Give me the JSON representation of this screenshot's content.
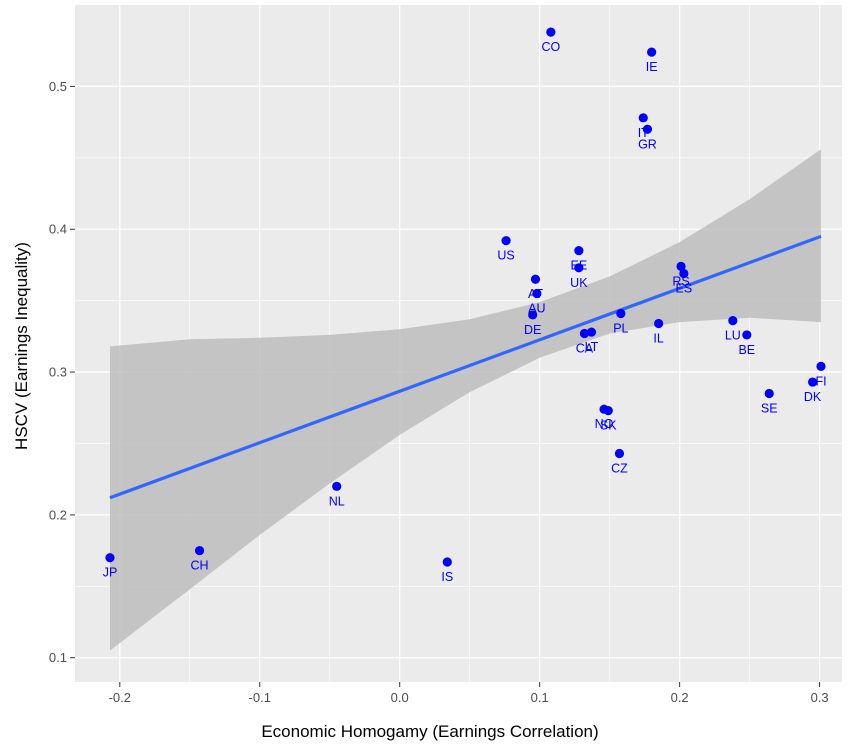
{
  "chart_data": {
    "type": "scatter",
    "title": "",
    "xlabel": "Economic Homogamy (Earnings Correlation)",
    "ylabel": "HSCV (Earnings Inequality)",
    "xlim": [
      -0.232,
      0.316
    ],
    "ylim": [
      0.083,
      0.557
    ],
    "x_ticks": [
      -0.2,
      -0.1,
      0.0,
      0.1,
      0.2,
      0.3
    ],
    "x_tick_labels": [
      "-0.2",
      "-0.1",
      "0.0",
      "0.1",
      "0.2",
      "0.3"
    ],
    "y_ticks": [
      0.1,
      0.2,
      0.3,
      0.4,
      0.5
    ],
    "y_tick_labels": [
      "0.1",
      "0.2",
      "0.3",
      "0.4",
      "0.5"
    ],
    "grid": true,
    "legend": "none",
    "colors": {
      "panel": "#ebebeb",
      "grid": "#ffffff",
      "points": "#0000ff",
      "trend_line": "#3366ff",
      "confidence_band": "#bdbdbd"
    },
    "points": [
      {
        "label": "JP",
        "x": -0.207,
        "y": 0.17
      },
      {
        "label": "CH",
        "x": -0.143,
        "y": 0.175
      },
      {
        "label": "NL",
        "x": -0.045,
        "y": 0.22
      },
      {
        "label": "IS",
        "x": 0.034,
        "y": 0.167
      },
      {
        "label": "US",
        "x": 0.076,
        "y": 0.392
      },
      {
        "label": "AT",
        "x": 0.097,
        "y": 0.365
      },
      {
        "label": "UK",
        "x": 0.128,
        "y": 0.373
      },
      {
        "label": "EE",
        "x": 0.128,
        "y": 0.385
      },
      {
        "label": "AU",
        "x": 0.098,
        "y": 0.355
      },
      {
        "label": "DE",
        "x": 0.095,
        "y": 0.34
      },
      {
        "label": "CO",
        "x": 0.108,
        "y": 0.538
      },
      {
        "label": "IE",
        "x": 0.18,
        "y": 0.524
      },
      {
        "label": "IT",
        "x": 0.174,
        "y": 0.478
      },
      {
        "label": "GR",
        "x": 0.177,
        "y": 0.47
      },
      {
        "label": "CA",
        "x": 0.132,
        "y": 0.327
      },
      {
        "label": "LT",
        "x": 0.137,
        "y": 0.328
      },
      {
        "label": "PL",
        "x": 0.158,
        "y": 0.341
      },
      {
        "label": "IL",
        "x": 0.185,
        "y": 0.334
      },
      {
        "label": "RS",
        "x": 0.201,
        "y": 0.374
      },
      {
        "label": "ES",
        "x": 0.203,
        "y": 0.369
      },
      {
        "label": "LU",
        "x": 0.238,
        "y": 0.336
      },
      {
        "label": "BE",
        "x": 0.248,
        "y": 0.326
      },
      {
        "label": "NO",
        "x": 0.146,
        "y": 0.274
      },
      {
        "label": "SK",
        "x": 0.149,
        "y": 0.273
      },
      {
        "label": "CZ",
        "x": 0.157,
        "y": 0.243
      },
      {
        "label": "SE",
        "x": 0.264,
        "y": 0.285
      },
      {
        "label": "DK",
        "x": 0.295,
        "y": 0.293
      },
      {
        "label": "FI",
        "x": 0.301,
        "y": 0.304
      }
    ],
    "trend_line": {
      "x": [
        -0.207,
        0.301
      ],
      "y": [
        0.212,
        0.395
      ]
    },
    "confidence_band": {
      "x": [
        -0.207,
        -0.15,
        -0.1,
        -0.05,
        0.0,
        0.05,
        0.1,
        0.15,
        0.2,
        0.25,
        0.301
      ],
      "lower": [
        0.105,
        0.148,
        0.186,
        0.222,
        0.256,
        0.286,
        0.31,
        0.327,
        0.335,
        0.338,
        0.335
      ],
      "upper": [
        0.318,
        0.323,
        0.324,
        0.326,
        0.33,
        0.337,
        0.349,
        0.367,
        0.391,
        0.421,
        0.456
      ]
    }
  }
}
